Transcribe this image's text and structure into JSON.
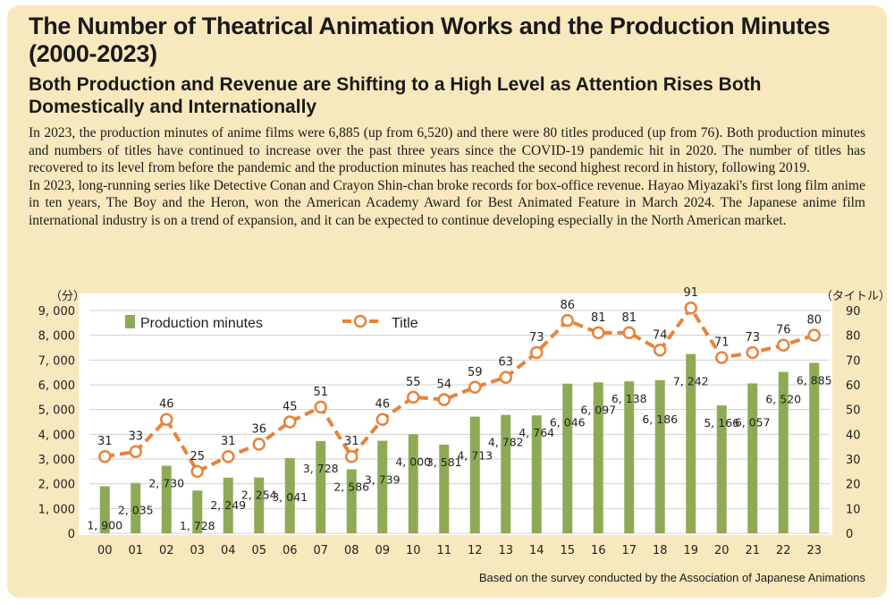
{
  "heading": {
    "title": "The Number of Theatrical Animation Works and the Production Minutes (2000-2023)",
    "subtitle": "Both Production and Revenue are Shifting to a High Level as Attention Rises Both Domestically and Internationally"
  },
  "body": {
    "paragraph1": "In 2023, the production minutes of anime films were 6,885 (up from 6,520) and there were 80 titles produced (up from 76). Both production minutes and numbers of titles have continued to increase over the past three years since the COVID-19 pandemic hit in 2020. The number of titles has recovered to its level from before the pandemic and the production minutes has reached the second highest record in history, following 2019.",
    "paragraph2": "In 2023, long-running series like Detective Conan and Crayon Shin-chan broke records for box-office revenue. Hayao Miyazaki's first long film anime in ten years, The Boy and the Heron, won the American Academy Award for Best Animated Feature in March 2024. The Japanese anime film international industry is on a trend of expansion, and it can be expected to continue developing especially in the North American market."
  },
  "source": "Based on the survey conducted by the Association of Japanese Animations",
  "colors": {
    "bar": "#8faa55",
    "line": "#e8833a",
    "background": "#f8e8bd"
  },
  "chart_data": {
    "type": "bar",
    "categories": [
      "00",
      "01",
      "02",
      "03",
      "04",
      "05",
      "06",
      "07",
      "08",
      "09",
      "10",
      "11",
      "12",
      "13",
      "14",
      "15",
      "16",
      "17",
      "18",
      "19",
      "20",
      "21",
      "22",
      "23"
    ],
    "series": [
      {
        "name": "Production minutes",
        "type": "bar",
        "axis": "left",
        "values": [
          1900,
          2035,
          2730,
          1728,
          2249,
          2254,
          3041,
          3728,
          2586,
          3739,
          4000,
          3581,
          4713,
          4782,
          4764,
          6046,
          6097,
          6138,
          6186,
          7242,
          5166,
          6057,
          6520,
          6885
        ],
        "labels": [
          "1, 900",
          "2, 035",
          "2, 730",
          "1, 728",
          "2, 249",
          "2, 254",
          "3, 041",
          "3, 728",
          "2, 586",
          "3, 739",
          "4, 000",
          "3, 581",
          "4, 713",
          "4, 782",
          "4, 764",
          "6, 046",
          "6, 097",
          "6, 138",
          "6, 186",
          "7, 242",
          "5, 166",
          "6, 057",
          "6, 520",
          "6, 885"
        ]
      },
      {
        "name": "Title",
        "type": "line",
        "axis": "right",
        "values": [
          31,
          33,
          46,
          25,
          31,
          36,
          45,
          51,
          31,
          46,
          55,
          54,
          59,
          63,
          73,
          86,
          81,
          81,
          74,
          91,
          71,
          73,
          76,
          80
        ]
      }
    ],
    "y_left": {
      "unit": "（分）",
      "ylim": [
        0,
        9000
      ],
      "ticks": [
        "0",
        "1, 000",
        "2, 000",
        "3, 000",
        "4, 000",
        "5, 000",
        "6, 000",
        "7, 000",
        "8, 000",
        "9, 000"
      ]
    },
    "y_right": {
      "unit": "（タイトル）",
      "ylim": [
        0,
        90
      ],
      "ticks": [
        "0",
        "10",
        "20",
        "30",
        "40",
        "50",
        "60",
        "70",
        "80",
        "90"
      ]
    },
    "legend": {
      "bar_label": "Production minutes",
      "line_label": "Title",
      "placement": "top-left"
    }
  }
}
